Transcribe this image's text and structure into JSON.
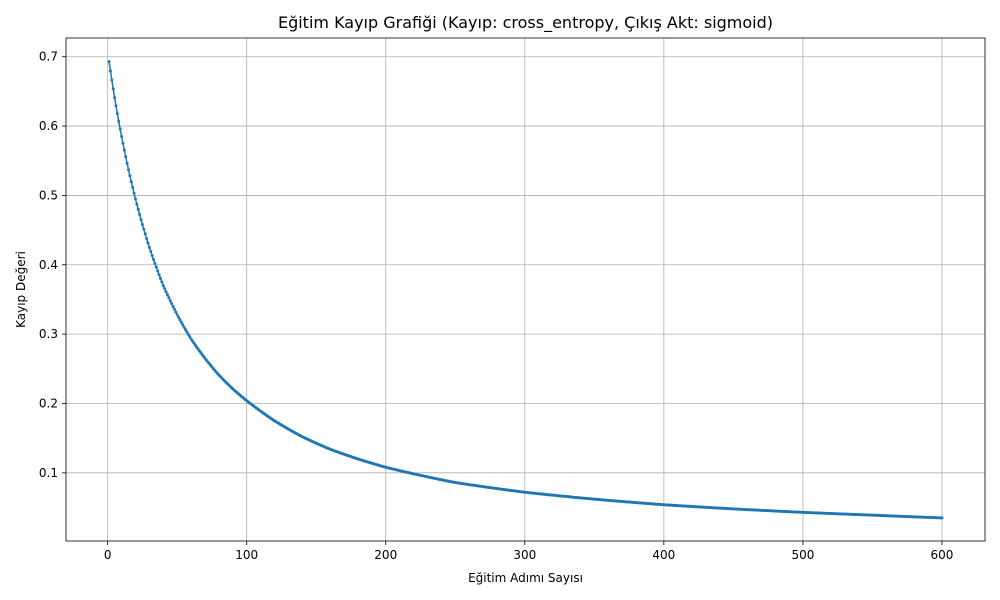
{
  "chart_data": {
    "type": "line",
    "title": "Eğitim Kayıp Grafiği (Kayıp: cross_entropy, Çıkış Akt: sigmoid)",
    "xlabel": "Eğitim Adımı Sayısı",
    "ylabel": "Kayıp Değeri",
    "xlim": [
      -29.95,
      630.95
    ],
    "ylim": [
      0.0017,
      0.727
    ],
    "xticks": [
      0,
      100,
      200,
      300,
      400,
      500,
      600
    ],
    "yticks": [
      0.1,
      0.2,
      0.3,
      0.4,
      0.5,
      0.6,
      0.7
    ],
    "xtick_labels": [
      "0",
      "100",
      "200",
      "300",
      "400",
      "500",
      "600"
    ],
    "ytick_labels": [
      "0.1",
      "0.2",
      "0.3",
      "0.4",
      "0.5",
      "0.6",
      "0.7"
    ],
    "grid": true,
    "color": "#1f77b4",
    "marker": "circle",
    "x_range": [
      1,
      600
    ],
    "series": [
      {
        "x": [
          1,
          5,
          10,
          15,
          20,
          25,
          30,
          40,
          50,
          60,
          70,
          80,
          90,
          100,
          120,
          140,
          160,
          180,
          200,
          250,
          300,
          350,
          400,
          450,
          500,
          550,
          600
        ],
        "values": [
          0.693,
          0.641,
          0.585,
          0.537,
          0.495,
          0.458,
          0.425,
          0.37,
          0.328,
          0.293,
          0.265,
          0.241,
          0.221,
          0.204,
          0.175,
          0.152,
          0.134,
          0.12,
          0.108,
          0.086,
          0.072,
          0.062,
          0.054,
          0.048,
          0.043,
          0.039,
          0.035
        ]
      }
    ]
  }
}
